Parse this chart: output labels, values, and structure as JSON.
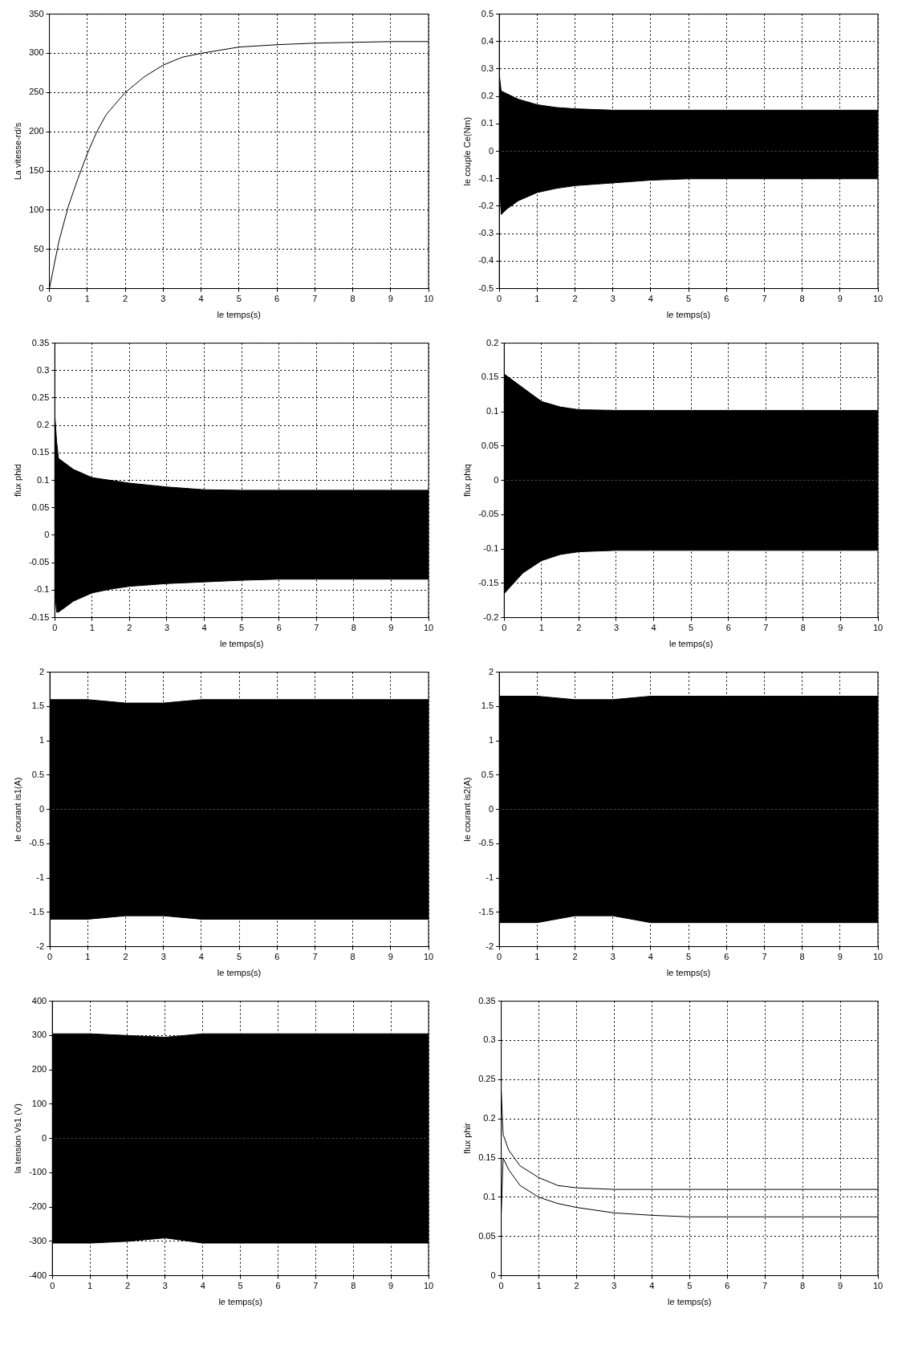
{
  "chart_data": [
    {
      "type": "line",
      "xlabel": "le temps(s)",
      "ylabel": "La vitesse-rd/s",
      "xlim": [
        0,
        10
      ],
      "xticks": [
        0,
        1,
        2,
        3,
        4,
        5,
        6,
        7,
        8,
        9,
        10
      ],
      "ylim": [
        0,
        350
      ],
      "yticks": [
        0,
        50,
        100,
        150,
        200,
        250,
        300,
        350
      ],
      "grid": true,
      "marker": "none",
      "x": [
        0,
        0.25,
        0.5,
        0.75,
        1,
        1.25,
        1.5,
        2,
        2.5,
        3,
        3.5,
        4,
        4.5,
        5,
        6,
        7,
        8,
        9,
        10
      ],
      "series": [
        {
          "color": "#000000",
          "values": [
            0,
            60,
            105,
            140,
            172,
            200,
            222,
            250,
            270,
            285,
            295,
            300,
            304,
            308,
            311,
            313,
            314,
            315,
            315
          ]
        }
      ]
    },
    {
      "type": "area",
      "xlabel": "le temps(s)",
      "ylabel": "le couple Ce(Nm)",
      "xlim": [
        0,
        10
      ],
      "xticks": [
        0,
        1,
        2,
        3,
        4,
        5,
        6,
        7,
        8,
        9,
        10
      ],
      "ylim": [
        -0.5,
        0.5
      ],
      "yticks": [
        -0.5,
        -0.4,
        -0.3,
        -0.2,
        -0.1,
        0,
        0.1,
        0.2,
        0.3,
        0.4,
        0.5
      ],
      "grid": true,
      "marker": "none",
      "x": [
        0,
        0.05,
        0.2,
        0.5,
        1,
        1.5,
        2,
        3,
        4,
        5,
        6,
        7,
        8,
        9,
        10
      ],
      "series": [
        {
          "color": "#000000",
          "values": [
            0.28,
            0.22,
            0.21,
            0.19,
            0.17,
            0.16,
            0.155,
            0.15,
            0.15,
            0.15,
            0.15,
            0.15,
            0.15,
            0.15,
            0.15
          ]
        },
        {
          "color": "#000000",
          "values": [
            -0.1,
            -0.23,
            -0.21,
            -0.18,
            -0.15,
            -0.135,
            -0.125,
            -0.115,
            -0.105,
            -0.1,
            -0.1,
            -0.1,
            -0.1,
            -0.1,
            -0.1
          ]
        }
      ]
    },
    {
      "type": "area",
      "xlabel": "le temps(s)",
      "ylabel": "flux phid",
      "xlim": [
        0,
        10
      ],
      "xticks": [
        0,
        1,
        2,
        3,
        4,
        5,
        6,
        7,
        8,
        9,
        10
      ],
      "ylim": [
        -0.15,
        0.35
      ],
      "yticks": [
        -0.15,
        -0.1,
        -0.05,
        0,
        0.05,
        0.1,
        0.15,
        0.2,
        0.25,
        0.3,
        0.35
      ],
      "grid": true,
      "marker": "none",
      "x": [
        0,
        0.05,
        0.1,
        0.3,
        0.5,
        1,
        1.5,
        2,
        3,
        4,
        5,
        6,
        7,
        8,
        9,
        10
      ],
      "series": [
        {
          "color": "#000000",
          "values": [
            0.22,
            0.17,
            0.14,
            0.13,
            0.12,
            0.105,
            0.1,
            0.095,
            0.088,
            0.083,
            0.082,
            0.082,
            0.082,
            0.082,
            0.082,
            0.082
          ]
        },
        {
          "color": "#000000",
          "values": [
            -0.1,
            -0.14,
            -0.14,
            -0.13,
            -0.12,
            -0.105,
            -0.098,
            -0.093,
            -0.088,
            -0.085,
            -0.082,
            -0.08,
            -0.08,
            -0.08,
            -0.08,
            -0.08
          ]
        }
      ]
    },
    {
      "type": "area",
      "xlabel": "le temps(s)",
      "ylabel": "flux phiq",
      "xlim": [
        0,
        10
      ],
      "xticks": [
        0,
        1,
        2,
        3,
        4,
        5,
        6,
        7,
        8,
        9,
        10
      ],
      "ylim": [
        -0.2,
        0.2
      ],
      "yticks": [
        -0.2,
        -0.15,
        -0.1,
        -0.05,
        0,
        0.05,
        0.1,
        0.15,
        0.2
      ],
      "grid": true,
      "marker": "none",
      "x": [
        0,
        0.5,
        1,
        1.5,
        2,
        3,
        4,
        5,
        6,
        7,
        8,
        9,
        10
      ],
      "series": [
        {
          "color": "#000000",
          "values": [
            0.155,
            0.135,
            0.115,
            0.107,
            0.103,
            0.102,
            0.102,
            0.102,
            0.102,
            0.102,
            0.102,
            0.102,
            0.102
          ]
        },
        {
          "color": "#000000",
          "values": [
            -0.165,
            -0.135,
            -0.117,
            -0.108,
            -0.104,
            -0.102,
            -0.102,
            -0.102,
            -0.102,
            -0.102,
            -0.102,
            -0.102,
            -0.102
          ]
        }
      ]
    },
    {
      "type": "area",
      "xlabel": "le temps(s)",
      "ylabel": "le courant is1(A)",
      "xlim": [
        0,
        10
      ],
      "xticks": [
        0,
        1,
        2,
        3,
        4,
        5,
        6,
        7,
        8,
        9,
        10
      ],
      "ylim": [
        -2,
        2
      ],
      "yticks": [
        -2,
        -1.5,
        -1,
        -0.5,
        0,
        0.5,
        1,
        1.5,
        2
      ],
      "grid": true,
      "marker": "none",
      "x": [
        0,
        1,
        2,
        3,
        4,
        5,
        6,
        7,
        8,
        9,
        10
      ],
      "series": [
        {
          "color": "#000000",
          "values": [
            1.6,
            1.6,
            1.55,
            1.55,
            1.6,
            1.6,
            1.6,
            1.6,
            1.6,
            1.6,
            1.6
          ]
        },
        {
          "color": "#000000",
          "values": [
            -1.6,
            -1.6,
            -1.55,
            -1.55,
            -1.6,
            -1.6,
            -1.6,
            -1.6,
            -1.6,
            -1.6,
            -1.6
          ]
        }
      ]
    },
    {
      "type": "area",
      "xlabel": "le temps(s)",
      "ylabel": "le courant is2(A)",
      "xlim": [
        0,
        10
      ],
      "xticks": [
        0,
        1,
        2,
        3,
        4,
        5,
        6,
        7,
        8,
        9,
        10
      ],
      "ylim": [
        -2,
        2
      ],
      "yticks": [
        -2,
        -1.5,
        -1,
        -0.5,
        0,
        0.5,
        1,
        1.5,
        2
      ],
      "grid": true,
      "marker": "none",
      "x": [
        0,
        1,
        2,
        3,
        4,
        5,
        6,
        7,
        8,
        9,
        10
      ],
      "series": [
        {
          "color": "#000000",
          "values": [
            1.65,
            1.65,
            1.6,
            1.6,
            1.65,
            1.65,
            1.65,
            1.65,
            1.65,
            1.65,
            1.65
          ]
        },
        {
          "color": "#000000",
          "values": [
            -1.65,
            -1.65,
            -1.55,
            -1.55,
            -1.65,
            -1.65,
            -1.65,
            -1.65,
            -1.65,
            -1.65,
            -1.65
          ]
        }
      ]
    },
    {
      "type": "area",
      "xlabel": "le temps(s)",
      "ylabel": "la tension Vs1 (V)",
      "xlim": [
        0,
        10
      ],
      "xticks": [
        0,
        1,
        2,
        3,
        4,
        5,
        6,
        7,
        8,
        9,
        10
      ],
      "ylim": [
        -400,
        400
      ],
      "yticks": [
        -400,
        -300,
        -200,
        -100,
        0,
        100,
        200,
        300,
        400
      ],
      "grid": true,
      "marker": "none",
      "x": [
        0,
        1,
        2,
        3,
        4,
        5,
        6,
        7,
        8,
        9,
        10
      ],
      "series": [
        {
          "color": "#000000",
          "values": [
            305,
            305,
            300,
            295,
            305,
            305,
            305,
            305,
            305,
            305,
            305
          ]
        },
        {
          "color": "#000000",
          "values": [
            -305,
            -305,
            -300,
            -290,
            -305,
            -305,
            -305,
            -305,
            -305,
            -305,
            -305
          ]
        }
      ]
    },
    {
      "type": "line",
      "xlabel": "le temps(s)",
      "ylabel": "flux phir",
      "xlim": [
        0,
        10
      ],
      "xticks": [
        0,
        1,
        2,
        3,
        4,
        5,
        6,
        7,
        8,
        9,
        10
      ],
      "ylim": [
        0,
        0.35
      ],
      "yticks": [
        0,
        0.05,
        0.1,
        0.15,
        0.2,
        0.25,
        0.3,
        0.35
      ],
      "grid": true,
      "marker": "none",
      "x": [
        0,
        0.05,
        0.2,
        0.5,
        1,
        1.5,
        2,
        3,
        4,
        5,
        6,
        7,
        8,
        9,
        10
      ],
      "series": [
        {
          "color": "#000000",
          "values": [
            0.235,
            0.18,
            0.16,
            0.14,
            0.125,
            0.115,
            0.112,
            0.11,
            0.11,
            0.11,
            0.11,
            0.11,
            0.11,
            0.11,
            0.11
          ]
        },
        {
          "color": "#000000",
          "values": [
            0.08,
            0.15,
            0.135,
            0.115,
            0.1,
            0.092,
            0.087,
            0.08,
            0.077,
            0.075,
            0.075,
            0.075,
            0.075,
            0.075,
            0.075
          ]
        }
      ]
    }
  ]
}
